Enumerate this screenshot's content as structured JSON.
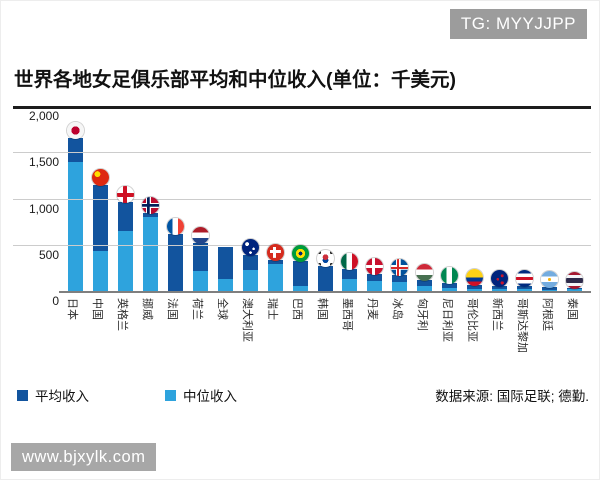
{
  "badges": {
    "telegram": "TG: MYYJJPP",
    "watermark": "www.bjxylk.com"
  },
  "legend": {
    "average_label": "平均收入",
    "median_label": "中位收入"
  },
  "colors": {
    "average_bar": "#12549e",
    "median_bar": "#2ea3dd",
    "gridline": "#cccccc",
    "top_rule": "#1c1c1c",
    "badge_gray": "#9c9c9c"
  },
  "chart_data": {
    "type": "bar",
    "title": "世界各地女足俱乐部平均和中位收入(单位：千美元)",
    "unit": "千美元",
    "xlabel": "",
    "ylabel": "",
    "ylim": [
      0,
      2000
    ],
    "yticks": [
      0,
      500,
      1000,
      1500,
      2000
    ],
    "ytick_labels": [
      "0",
      "500",
      "1,000",
      "1,500",
      "2,000"
    ],
    "grid": true,
    "legend_position": "bottom-left",
    "source": "数据来源: 国际足联; 德勤.",
    "categories": [
      "日本",
      "中国",
      "英格兰",
      "挪威",
      "法国",
      "荷兰",
      "全球",
      "澳大利亚",
      "瑞士",
      "巴西",
      "韩国",
      "墨西哥",
      "丹麦",
      "冰岛",
      "匈牙利",
      "尼日利亚",
      "哥伦比亚",
      "新西兰",
      "哥斯达黎加",
      "阿根廷",
      "泰国"
    ],
    "flags": [
      "japan",
      "china",
      "england",
      "norway",
      "france",
      "netherlands",
      null,
      "australia",
      "switzerland",
      "brazil",
      "south-korea",
      "mexico",
      "denmark",
      "iceland",
      "hungary",
      "nigeria",
      "colombia",
      "new-zealand",
      "costa-rica",
      "argentina",
      "thailand"
    ],
    "series": [
      {
        "name": "平均收入",
        "color": "#12549e",
        "values": [
          1650,
          1150,
          960,
          840,
          620,
          520,
          480,
          390,
          340,
          320,
          270,
          235,
          185,
          170,
          120,
          85,
          60,
          55,
          50,
          40,
          28
        ]
      },
      {
        "name": "中位收入",
        "color": "#2ea3dd",
        "values": [
          1400,
          430,
          650,
          800,
          null,
          220,
          130,
          230,
          290,
          55,
          null,
          125,
          105,
          95,
          55,
          35,
          25,
          20,
          20,
          15,
          22
        ]
      }
    ]
  }
}
